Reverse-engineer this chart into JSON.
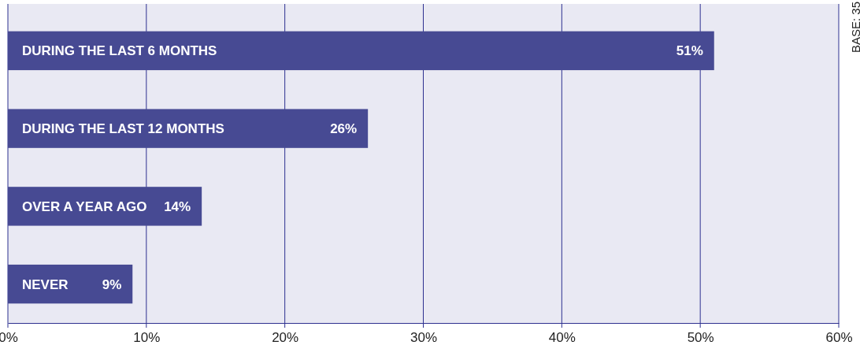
{
  "chart_data": {
    "type": "bar",
    "orientation": "horizontal",
    "categories": [
      "DURING THE LAST 6 MONTHS",
      "DURING THE LAST 12 MONTHS",
      "OVER A YEAR AGO",
      "NEVER"
    ],
    "values": [
      51,
      26,
      14,
      9
    ],
    "value_labels": [
      "51%",
      "26%",
      "14%",
      "9%"
    ],
    "color": "#474a93",
    "xlim": [
      0,
      60
    ],
    "xticks": [
      {
        "value": 0,
        "label": "0%"
      },
      {
        "value": 10,
        "label": "10%"
      },
      {
        "value": 20,
        "label": "20%"
      },
      {
        "value": 30,
        "label": "30%"
      },
      {
        "value": 40,
        "label": "40%"
      },
      {
        "value": 50,
        "label": "50%"
      },
      {
        "value": 60,
        "label": "60%"
      }
    ],
    "grid": "x",
    "annotations": [
      "BASE: 35"
    ]
  }
}
